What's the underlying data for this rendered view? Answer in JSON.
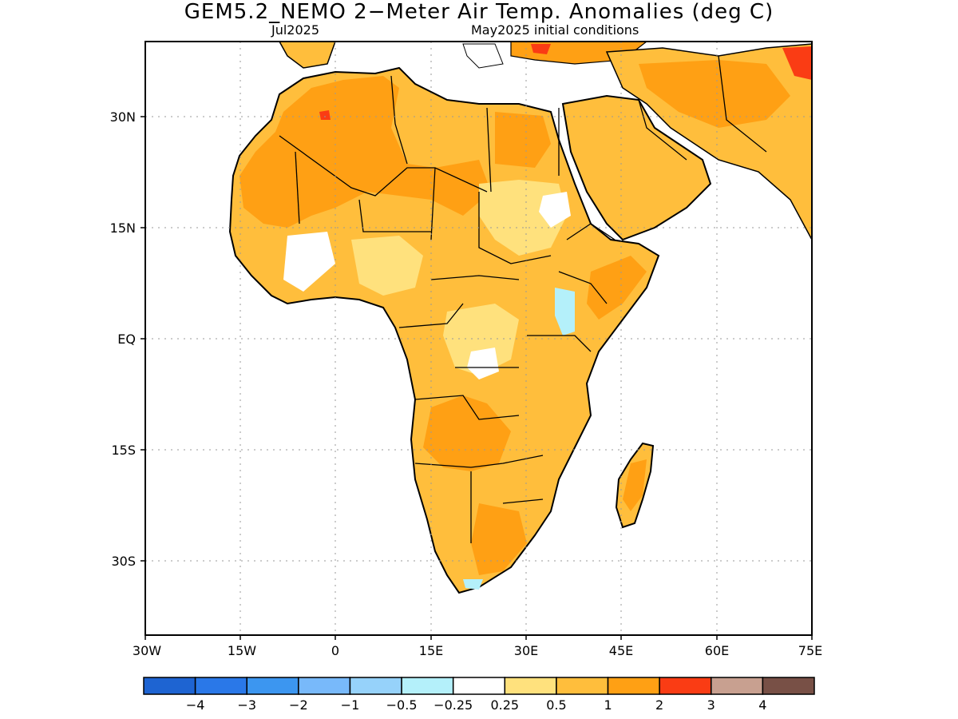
{
  "title": "GEM5.2_NEMO 2−Meter Air Temp. Anomalies (deg C)",
  "subtitle_left": "Jul2025",
  "subtitle_right": "May2025 initial conditions",
  "map": {
    "lat_labels": [
      "30N",
      "15N",
      "EQ",
      "15S",
      "30S"
    ],
    "lat_values": [
      30,
      15,
      0,
      -15,
      -30
    ],
    "lon_labels": [
      "30W",
      "15W",
      "0",
      "15E",
      "30E",
      "45E",
      "60E",
      "75E"
    ],
    "lon_values": [
      -30,
      -15,
      0,
      15,
      30,
      45,
      60,
      75
    ],
    "lon_range": [
      -30,
      75
    ],
    "lat_range": [
      -40,
      40
    ]
  },
  "colorbar": {
    "colors": [
      "#1e64d2",
      "#2a78e8",
      "#3c96f0",
      "#78b9fa",
      "#96d2fa",
      "#b4f0fa",
      "#ffffff",
      "#ffe17d",
      "#ffbe3c",
      "#ffa014",
      "#fa3c14",
      "#c8a090",
      "#785046"
    ],
    "labels": [
      "−4",
      "−3",
      "−2",
      "−1",
      "−0.5",
      "−0.25",
      "0.25",
      "0.5",
      "1",
      "2",
      "3",
      "4"
    ]
  }
}
